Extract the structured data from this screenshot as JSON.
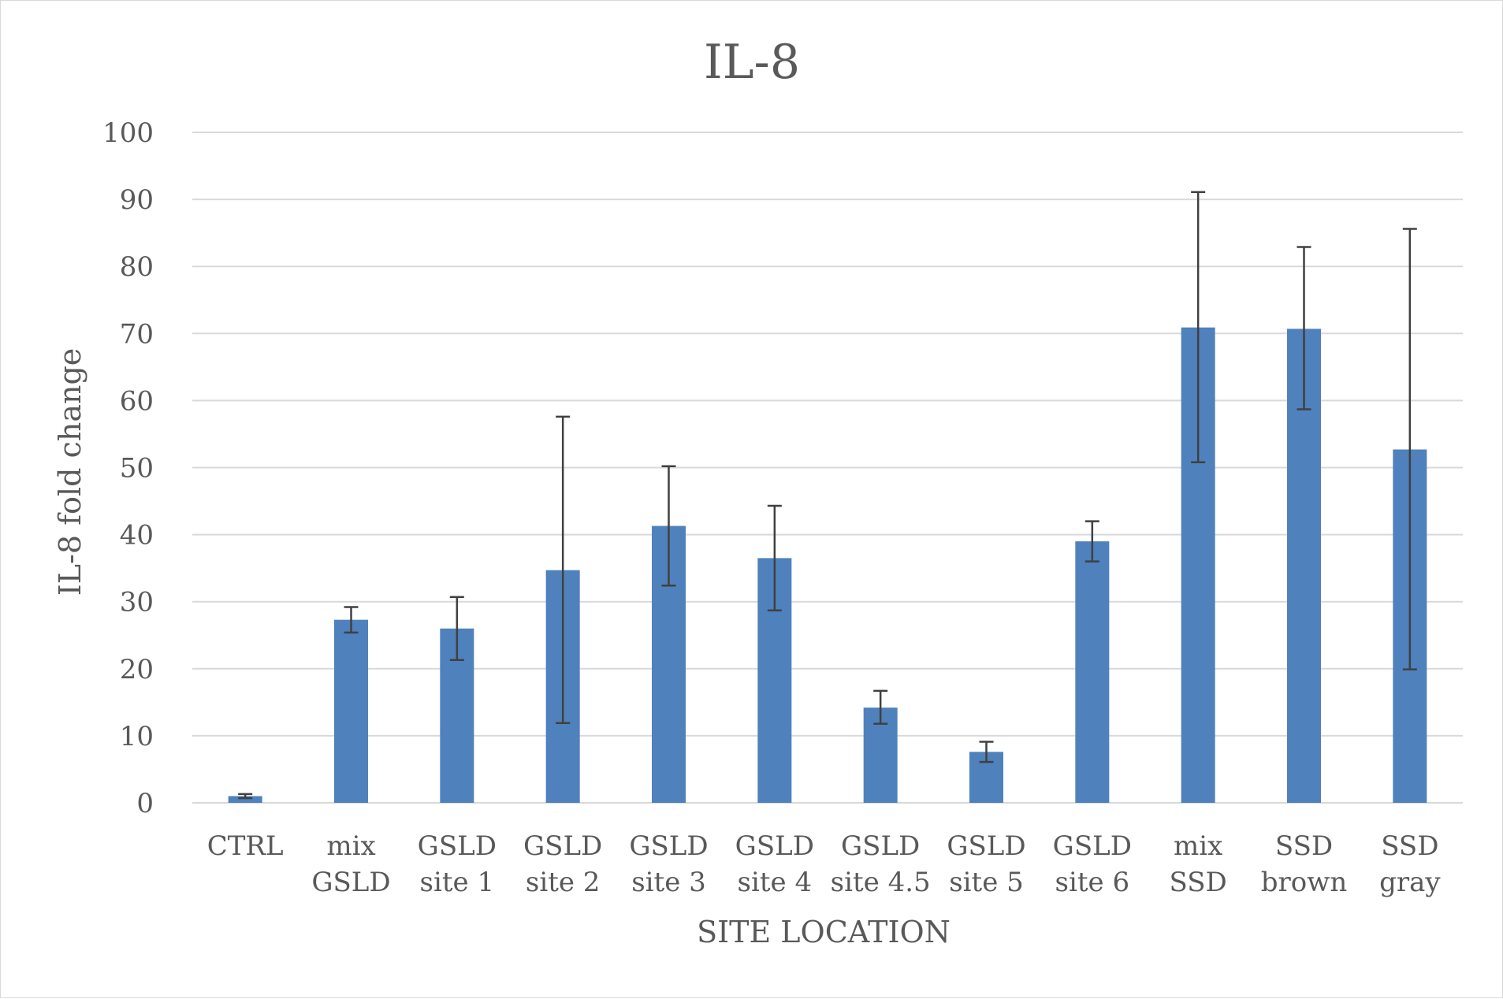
{
  "chart_data": {
    "type": "bar",
    "title": "IL-8",
    "xlabel": "SITE LOCATION",
    "ylabel": "IL-8 fold change",
    "ylim": [
      0,
      100
    ],
    "yticks": [
      0,
      10,
      20,
      30,
      40,
      50,
      60,
      70,
      80,
      90,
      100
    ],
    "grid": true,
    "legend": "none",
    "categories": [
      [
        "CTRL"
      ],
      [
        "mix",
        "GSLD"
      ],
      [
        "GSLD",
        "site 1"
      ],
      [
        "GSLD",
        "site 2"
      ],
      [
        "GSLD",
        "site 3"
      ],
      [
        "GSLD",
        "site 4"
      ],
      [
        "GSLD",
        "site 4.5"
      ],
      [
        "GSLD",
        "site 5"
      ],
      [
        "GSLD",
        "site 6"
      ],
      [
        "mix",
        "SSD"
      ],
      [
        "SSD",
        "brown"
      ],
      [
        "SSD",
        "gray"
      ]
    ],
    "values": [
      1,
      27.3,
      26,
      34.7,
      41.3,
      36.5,
      14.2,
      7.6,
      39,
      70.9,
      70.7,
      52.7
    ],
    "error_low": [
      0.7,
      25.4,
      21.3,
      11.9,
      32.4,
      28.7,
      11.8,
      6.1,
      36,
      50.8,
      58.7,
      19.9
    ],
    "error_high": [
      1.3,
      29.2,
      30.7,
      57.6,
      50.2,
      44.3,
      16.7,
      9.1,
      42,
      91.1,
      82.9,
      85.6
    ],
    "colors": {
      "bar": "#4f81bd",
      "error_bar": "#404040",
      "grid": "#d9d9d9",
      "text": "#595959"
    }
  }
}
